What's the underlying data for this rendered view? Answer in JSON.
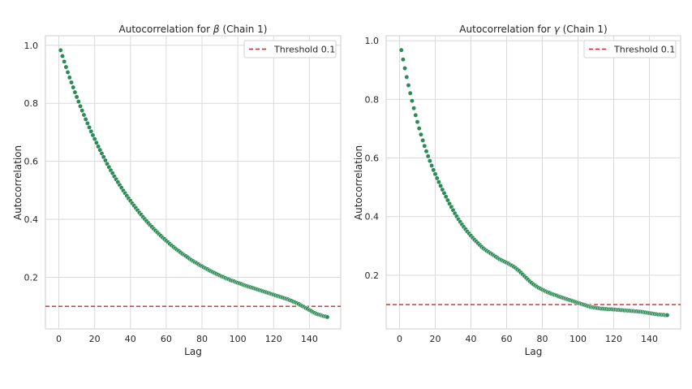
{
  "chart_data": [
    {
      "type": "scatter",
      "title_main": "Autocorrelation for ",
      "title_symbol": "β",
      "title_suffix": " (Chain 1)",
      "xlabel": "Lag",
      "ylabel": "Autocorrelation",
      "xlim": [
        -7.5,
        157.5
      ],
      "ylim": [
        0.022,
        1.033
      ],
      "xticks": [
        0,
        20,
        40,
        60,
        80,
        100,
        120,
        140
      ],
      "yticks": [
        0.2,
        0.4,
        0.6,
        0.8,
        1.0
      ],
      "ytick_labels": [
        "0.2",
        "0.4",
        "0.6",
        "0.8",
        "1.0"
      ],
      "grid": true,
      "legend_position": "top-right",
      "threshold": {
        "label": "Threshold 0.1",
        "value": 0.1,
        "color": "#c7282f"
      },
      "point_color": "#2e8b57",
      "series": [
        {
          "x": [
            1,
            2,
            3,
            4,
            5,
            6,
            7,
            8,
            9,
            10,
            11,
            12,
            13,
            14,
            15,
            16,
            17,
            18,
            19,
            20,
            21,
            22,
            23,
            24,
            25,
            26,
            27,
            28,
            29,
            30,
            31,
            32,
            33,
            34,
            35,
            36,
            37,
            38,
            39,
            40,
            41,
            42,
            43,
            44,
            45,
            46,
            47,
            48,
            49,
            50,
            51,
            52,
            53,
            54,
            55,
            56,
            57,
            58,
            59,
            60,
            61,
            62,
            63,
            64,
            65,
            66,
            67,
            68,
            69,
            70,
            71,
            72,
            73,
            74,
            75,
            76,
            77,
            78,
            79,
            80,
            81,
            82,
            83,
            84,
            85,
            86,
            87,
            88,
            89,
            90,
            91,
            92,
            93,
            94,
            95,
            96,
            97,
            98,
            99,
            100,
            101,
            102,
            103,
            104,
            105,
            106,
            107,
            108,
            109,
            110,
            111,
            112,
            113,
            114,
            115,
            116,
            117,
            118,
            119,
            120,
            121,
            122,
            123,
            124,
            125,
            126,
            127,
            128,
            129,
            130,
            131,
            132,
            133,
            134,
            135,
            136,
            137,
            138,
            139,
            140,
            141,
            142,
            143,
            144,
            145,
            146,
            147,
            148,
            149,
            150
          ],
          "y": [
            0.983,
            0.963,
            0.944,
            0.925,
            0.907,
            0.889,
            0.872,
            0.855,
            0.838,
            0.822,
            0.806,
            0.79,
            0.775,
            0.76,
            0.745,
            0.731,
            0.717,
            0.703,
            0.69,
            0.677,
            0.664,
            0.651,
            0.639,
            0.627,
            0.615,
            0.603,
            0.591,
            0.58,
            0.569,
            0.559,
            0.548,
            0.538,
            0.528,
            0.518,
            0.509,
            0.499,
            0.49,
            0.481,
            0.472,
            0.464,
            0.455,
            0.447,
            0.439,
            0.431,
            0.423,
            0.416,
            0.408,
            0.401,
            0.394,
            0.387,
            0.38,
            0.374,
            0.367,
            0.361,
            0.355,
            0.349,
            0.343,
            0.337,
            0.332,
            0.326,
            0.321,
            0.315,
            0.31,
            0.305,
            0.3,
            0.295,
            0.291,
            0.286,
            0.281,
            0.277,
            0.273,
            0.269,
            0.264,
            0.26,
            0.256,
            0.252,
            0.249,
            0.245,
            0.241,
            0.238,
            0.234,
            0.231,
            0.228,
            0.224,
            0.221,
            0.218,
            0.215,
            0.212,
            0.209,
            0.206,
            0.203,
            0.201,
            0.198,
            0.195,
            0.193,
            0.19,
            0.188,
            0.186,
            0.183,
            0.181,
            0.179,
            0.177,
            0.174,
            0.172,
            0.17,
            0.168,
            0.166,
            0.164,
            0.162,
            0.16,
            0.158,
            0.156,
            0.154,
            0.152,
            0.15,
            0.148,
            0.146,
            0.144,
            0.142,
            0.14,
            0.138,
            0.136,
            0.134,
            0.132,
            0.13,
            0.128,
            0.126,
            0.124,
            0.121,
            0.119,
            0.116,
            0.114,
            0.111,
            0.108,
            0.104,
            0.101,
            0.098,
            0.094,
            0.091,
            0.087,
            0.084,
            0.08,
            0.077,
            0.074,
            0.072,
            0.07,
            0.068,
            0.066,
            0.065,
            0.063
          ]
        }
      ]
    },
    {
      "type": "scatter",
      "title_main": "Autocorrelation for ",
      "title_symbol": "γ",
      "title_suffix": " (Chain 1)",
      "xlabel": "Lag",
      "ylabel": "Autocorrelation",
      "xlim": [
        -7.5,
        157.5
      ],
      "ylim": [
        0.017,
        1.017
      ],
      "xticks": [
        0,
        20,
        40,
        60,
        80,
        100,
        120,
        140
      ],
      "yticks": [
        0.2,
        0.4,
        0.6,
        0.8,
        1.0
      ],
      "ytick_labels": [
        "0.2",
        "0.4",
        "0.6",
        "0.8",
        "1.0"
      ],
      "grid": true,
      "legend_position": "top-right",
      "threshold": {
        "label": "Threshold 0.1",
        "value": 0.1,
        "color": "#c7282f"
      },
      "point_color": "#2e8b57",
      "series": [
        {
          "x": [
            1,
            2,
            3,
            4,
            5,
            6,
            7,
            8,
            9,
            10,
            11,
            12,
            13,
            14,
            15,
            16,
            17,
            18,
            19,
            20,
            21,
            22,
            23,
            24,
            25,
            26,
            27,
            28,
            29,
            30,
            31,
            32,
            33,
            34,
            35,
            36,
            37,
            38,
            39,
            40,
            41,
            42,
            43,
            44,
            45,
            46,
            47,
            48,
            49,
            50,
            51,
            52,
            53,
            54,
            55,
            56,
            57,
            58,
            59,
            60,
            61,
            62,
            63,
            64,
            65,
            66,
            67,
            68,
            69,
            70,
            71,
            72,
            73,
            74,
            75,
            76,
            77,
            78,
            79,
            80,
            81,
            82,
            83,
            84,
            85,
            86,
            87,
            88,
            89,
            90,
            91,
            92,
            93,
            94,
            95,
            96,
            97,
            98,
            99,
            100,
            101,
            102,
            103,
            104,
            105,
            106,
            107,
            108,
            109,
            110,
            111,
            112,
            113,
            114,
            115,
            116,
            117,
            118,
            119,
            120,
            121,
            122,
            123,
            124,
            125,
            126,
            127,
            128,
            129,
            130,
            131,
            132,
            133,
            134,
            135,
            136,
            137,
            138,
            139,
            140,
            141,
            142,
            143,
            144,
            145,
            146,
            147,
            148,
            149,
            150
          ],
          "y": [
            0.968,
            0.936,
            0.906,
            0.876,
            0.848,
            0.821,
            0.795,
            0.77,
            0.746,
            0.723,
            0.701,
            0.68,
            0.66,
            0.641,
            0.623,
            0.606,
            0.59,
            0.574,
            0.559,
            0.545,
            0.531,
            0.518,
            0.505,
            0.492,
            0.48,
            0.468,
            0.456,
            0.444,
            0.433,
            0.422,
            0.411,
            0.401,
            0.391,
            0.382,
            0.373,
            0.365,
            0.357,
            0.349,
            0.342,
            0.335,
            0.328,
            0.321,
            0.315,
            0.309,
            0.303,
            0.297,
            0.292,
            0.287,
            0.283,
            0.279,
            0.275,
            0.271,
            0.267,
            0.263,
            0.259,
            0.255,
            0.252,
            0.249,
            0.246,
            0.243,
            0.24,
            0.236,
            0.233,
            0.229,
            0.225,
            0.22,
            0.215,
            0.209,
            0.203,
            0.197,
            0.191,
            0.185,
            0.179,
            0.174,
            0.169,
            0.165,
            0.161,
            0.157,
            0.154,
            0.151,
            0.148,
            0.145,
            0.142,
            0.14,
            0.137,
            0.135,
            0.133,
            0.131,
            0.128,
            0.126,
            0.124,
            0.122,
            0.12,
            0.118,
            0.116,
            0.114,
            0.112,
            0.11,
            0.108,
            0.106,
            0.104,
            0.102,
            0.1,
            0.098,
            0.096,
            0.094,
            0.092,
            0.091,
            0.09,
            0.089,
            0.088,
            0.087,
            0.086,
            0.086,
            0.085,
            0.085,
            0.084,
            0.084,
            0.084,
            0.083,
            0.083,
            0.082,
            0.082,
            0.081,
            0.081,
            0.08,
            0.08,
            0.079,
            0.079,
            0.078,
            0.078,
            0.077,
            0.077,
            0.076,
            0.076,
            0.075,
            0.074,
            0.073,
            0.072,
            0.071,
            0.07,
            0.069,
            0.068,
            0.067,
            0.066,
            0.066,
            0.065,
            0.065,
            0.064,
            0.064
          ]
        }
      ]
    }
  ]
}
